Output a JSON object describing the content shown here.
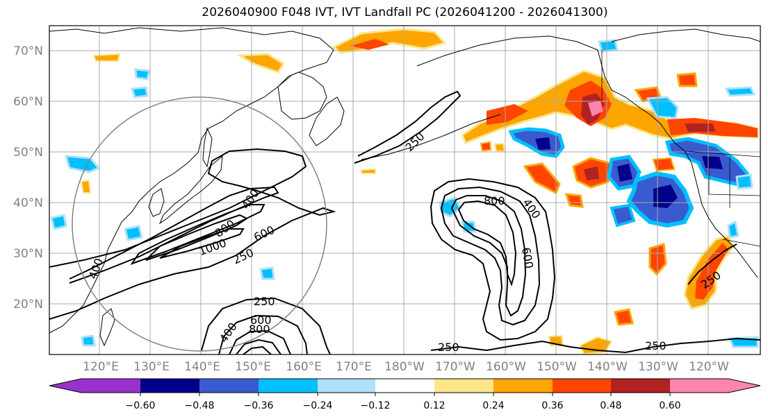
{
  "title": "2026040900 F048 IVT, IVT Landfall PC (2026041200 - 2026041300)",
  "lat_labels": [
    "70°N",
    "60°N",
    "50°N",
    "40°N",
    "30°N",
    "20°N"
  ],
  "lon_labels": [
    "120°E",
    "130°E",
    "140°E",
    "150°E",
    "160°E",
    "170°E",
    "180°W",
    "170°W",
    "160°W",
    "150°W",
    "140°W",
    "130°W",
    "120°W"
  ],
  "colorbar": {
    "colors": [
      "#9932cc",
      "#00008b",
      "#3a5bcf",
      "#00bfff",
      "#b0e0fa",
      "#ffffff",
      "#fde68a",
      "#ffa500",
      "#ff4500",
      "#b22222",
      "#ff85aa"
    ],
    "tick_labels": [
      "−0.60",
      "−0.48",
      "−0.36",
      "−0.24",
      "−0.12",
      "0.12",
      "0.24",
      "0.36",
      "0.48",
      "0.60"
    ]
  },
  "contour_labels": {
    "c250_a": "250",
    "c250_b": "250",
    "c250_c": "250",
    "c250_d": "250",
    "c250_e": "250",
    "c250_f": "250",
    "c400_a": "400",
    "c400_b": "400",
    "c400_c": "400",
    "c400_d": "400",
    "c600_a": "600",
    "c600_b": "600",
    "c600_c": "600",
    "c800_a": "800",
    "c800_b": "800",
    "c800_c": "800",
    "c1000": "1000"
  }
}
